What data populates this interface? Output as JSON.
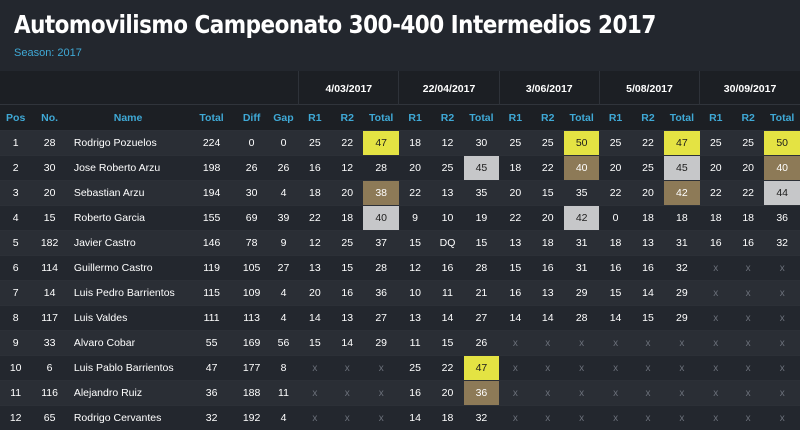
{
  "header": {
    "title": "Automovilismo Campeonato 300-400 Intermedios 2017",
    "season": "Season: 2017"
  },
  "colors": {
    "accent": "#3fa9d6",
    "gold": "#e4e343",
    "silver": "#c6c7c9",
    "bronze": "#8d7a57",
    "background": "#23272e"
  },
  "races": [
    "4/03/2017",
    "22/04/2017",
    "3/06/2017",
    "5/08/2017",
    "30/09/2017"
  ],
  "columns": {
    "pos": "Pos",
    "no": "No.",
    "name": "Name",
    "total": "Total",
    "diff": "Diff",
    "gap": "Gap",
    "r1": "R1",
    "r2": "R2",
    "race_total": "Total"
  },
  "rows": [
    {
      "pos": "1",
      "no": "28",
      "name": "Rodrigo Pozuelos",
      "total": "224",
      "diff": "0",
      "gap": "0",
      "races": [
        [
          "25",
          "22",
          "47",
          "gold"
        ],
        [
          "18",
          "12",
          "30",
          ""
        ],
        [
          "25",
          "25",
          "50",
          "gold"
        ],
        [
          "25",
          "22",
          "47",
          "gold"
        ],
        [
          "25",
          "25",
          "50",
          "gold"
        ]
      ]
    },
    {
      "pos": "2",
      "no": "30",
      "name": "Jose Roberto Arzu",
      "total": "198",
      "diff": "26",
      "gap": "26",
      "races": [
        [
          "16",
          "12",
          "28",
          ""
        ],
        [
          "20",
          "25",
          "45",
          "silver"
        ],
        [
          "18",
          "22",
          "40",
          "bronze"
        ],
        [
          "20",
          "25",
          "45",
          "silver"
        ],
        [
          "20",
          "20",
          "40",
          "bronze"
        ]
      ]
    },
    {
      "pos": "3",
      "no": "20",
      "name": "Sebastian Arzu",
      "total": "194",
      "diff": "30",
      "gap": "4",
      "races": [
        [
          "18",
          "20",
          "38",
          "bronze"
        ],
        [
          "22",
          "13",
          "35",
          ""
        ],
        [
          "20",
          "15",
          "35",
          ""
        ],
        [
          "22",
          "20",
          "42",
          "bronze"
        ],
        [
          "22",
          "22",
          "44",
          "silver"
        ]
      ]
    },
    {
      "pos": "4",
      "no": "15",
      "name": "Roberto Garcia",
      "total": "155",
      "diff": "69",
      "gap": "39",
      "races": [
        [
          "22",
          "18",
          "40",
          "silver"
        ],
        [
          "9",
          "10",
          "19",
          ""
        ],
        [
          "22",
          "20",
          "42",
          "silver"
        ],
        [
          "0",
          "18",
          "18",
          ""
        ],
        [
          "18",
          "18",
          "36",
          ""
        ]
      ]
    },
    {
      "pos": "5",
      "no": "182",
      "name": "Javier Castro",
      "total": "146",
      "diff": "78",
      "gap": "9",
      "races": [
        [
          "12",
          "25",
          "37",
          ""
        ],
        [
          "15",
          "DQ",
          "15",
          ""
        ],
        [
          "13",
          "18",
          "31",
          ""
        ],
        [
          "18",
          "13",
          "31",
          ""
        ],
        [
          "16",
          "16",
          "32",
          ""
        ]
      ]
    },
    {
      "pos": "6",
      "no": "114",
      "name": "Guillermo Castro",
      "total": "119",
      "diff": "105",
      "gap": "27",
      "races": [
        [
          "13",
          "15",
          "28",
          ""
        ],
        [
          "12",
          "16",
          "28",
          ""
        ],
        [
          "15",
          "16",
          "31",
          ""
        ],
        [
          "16",
          "16",
          "32",
          ""
        ],
        [
          "x",
          "x",
          "x",
          ""
        ]
      ]
    },
    {
      "pos": "7",
      "no": "14",
      "name": "Luis Pedro Barrientos",
      "total": "115",
      "diff": "109",
      "gap": "4",
      "races": [
        [
          "20",
          "16",
          "36",
          ""
        ],
        [
          "10",
          "11",
          "21",
          ""
        ],
        [
          "16",
          "13",
          "29",
          ""
        ],
        [
          "15",
          "14",
          "29",
          ""
        ],
        [
          "x",
          "x",
          "x",
          ""
        ]
      ]
    },
    {
      "pos": "8",
      "no": "117",
      "name": "Luis Valdes",
      "total": "111",
      "diff": "113",
      "gap": "4",
      "races": [
        [
          "14",
          "13",
          "27",
          ""
        ],
        [
          "13",
          "14",
          "27",
          ""
        ],
        [
          "14",
          "14",
          "28",
          ""
        ],
        [
          "14",
          "15",
          "29",
          ""
        ],
        [
          "x",
          "x",
          "x",
          ""
        ]
      ]
    },
    {
      "pos": "9",
      "no": "33",
      "name": "Alvaro Cobar",
      "total": "55",
      "diff": "169",
      "gap": "56",
      "races": [
        [
          "15",
          "14",
          "29",
          ""
        ],
        [
          "11",
          "15",
          "26",
          ""
        ],
        [
          "x",
          "x",
          "x",
          ""
        ],
        [
          "x",
          "x",
          "x",
          ""
        ],
        [
          "x",
          "x",
          "x",
          ""
        ]
      ]
    },
    {
      "pos": "10",
      "no": "6",
      "name": "Luis Pablo Barrientos",
      "total": "47",
      "diff": "177",
      "gap": "8",
      "races": [
        [
          "x",
          "x",
          "x",
          ""
        ],
        [
          "25",
          "22",
          "47",
          "gold"
        ],
        [
          "x",
          "x",
          "x",
          ""
        ],
        [
          "x",
          "x",
          "x",
          ""
        ],
        [
          "x",
          "x",
          "x",
          ""
        ]
      ]
    },
    {
      "pos": "11",
      "no": "116",
      "name": "Alejandro Ruiz",
      "total": "36",
      "diff": "188",
      "gap": "11",
      "races": [
        [
          "x",
          "x",
          "x",
          ""
        ],
        [
          "16",
          "20",
          "36",
          "bronze"
        ],
        [
          "x",
          "x",
          "x",
          ""
        ],
        [
          "x",
          "x",
          "x",
          ""
        ],
        [
          "x",
          "x",
          "x",
          ""
        ]
      ]
    },
    {
      "pos": "12",
      "no": "65",
      "name": "Rodrigo Cervantes",
      "total": "32",
      "diff": "192",
      "gap": "4",
      "races": [
        [
          "x",
          "x",
          "x",
          ""
        ],
        [
          "14",
          "18",
          "32",
          ""
        ],
        [
          "x",
          "x",
          "x",
          ""
        ],
        [
          "x",
          "x",
          "x",
          ""
        ],
        [
          "x",
          "x",
          "x",
          ""
        ]
      ]
    }
  ]
}
